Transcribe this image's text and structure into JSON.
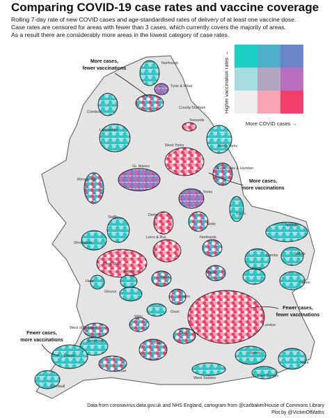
{
  "header": {
    "title": "Comparing COVID-19 case rates and vaccine coverage",
    "subtitle": [
      "Rolling 7-day rate of new COVID cases and age-standardised rates of delivery of at least one vaccine dose.",
      "Case rates are censored for areas with fewer than 3 cases, which currently covers the majority of areas.",
      "As a result there are considerably more areas in the lowest category of case rates."
    ]
  },
  "legend": {
    "y_label": "Higher vaccination rates →",
    "x_label": "More COVID cases →",
    "colors": [
      [
        "#1ccfc4",
        "#4bb0c8",
        "#6a85c9"
      ],
      [
        "#a7dde0",
        "#b1a6bd",
        "#b96ec0"
      ],
      [
        "#eeeeee",
        "#f7a5b2",
        "#f23f6b"
      ]
    ]
  },
  "annotations": [
    {
      "lines": [
        "More cases,",
        "fewer vaccinations"
      ]
    },
    {
      "lines": [
        "More cases,",
        "more vaccinations"
      ]
    },
    {
      "lines": [
        "Fewer cases,",
        "fewer vaccinations"
      ]
    },
    {
      "lines": [
        "Fewer cases,",
        "more vaccinations"
      ]
    }
  ],
  "regions": [
    "Northumb",
    "Tyne & Wear",
    "Cumbria",
    "County Durham",
    "Teesside",
    "Lancashire",
    "North Yorks",
    "West Yorks",
    "Gr. Mancs",
    "East Yorks & Humber",
    "Merseyside",
    "S. Yorks",
    "Lincs",
    "Staffs",
    "Derby",
    "Notts",
    "Norfolk",
    "Shropshire",
    "Leics & Rut.",
    "Northants",
    "Suffolk",
    "Cambs",
    "West Mids",
    "Beds",
    "Herts",
    "Worcs",
    "Warks",
    "Here",
    "Essex",
    "Gloucs",
    "Bucks",
    "London",
    "Oxon",
    "Wilts",
    "West of England",
    "Berks",
    "Somerset",
    "Hants",
    "Surrey",
    "Kent",
    "Devon",
    "Dorset",
    "West Sussex",
    "East Sussex",
    "Cornwall"
  ],
  "credits": [
    "Data from coronavirus.data.gov.uk and NHS England, cartogram from @carlbaker/House of Commons Library",
    "Plot by @VictimOfMaths"
  ]
}
